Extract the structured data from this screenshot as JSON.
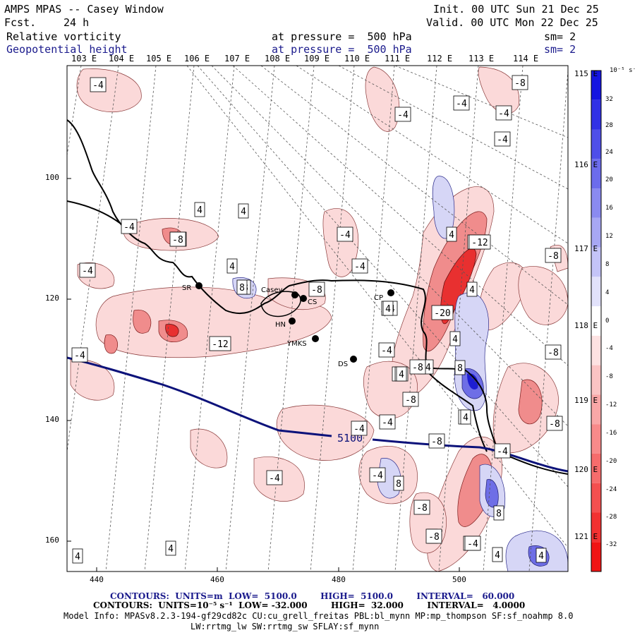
{
  "header": {
    "title": "AMPS MPAS -- Casey Window",
    "fcst_label": "Fcst.",
    "fcst_value": "24 h",
    "init": "Init. 00 UTC Sun 21 Dec 25",
    "valid": "Valid. 00 UTC Mon 22 Dec 25",
    "field1": "Relative vorticity",
    "field1_level": "at pressure =  500 hPa",
    "field1_smooth": "sm= 2",
    "field2": "Geopotential height",
    "field2_level": "at pressure =  500 hPa",
    "field2_smooth": "sm= 2"
  },
  "axes": {
    "top_lon": [
      "103 E",
      "104 E",
      "105 E",
      "106 E",
      "107 E",
      "108 E",
      "109 E",
      "110 E",
      "111 E",
      "112 E",
      "113 E",
      "114 E"
    ],
    "right_lon": [
      "115 E",
      "116 E",
      "117 E",
      "118 E",
      "119 E",
      "120 E",
      "121 E"
    ],
    "left_y": [
      "100",
      "120",
      "140",
      "160"
    ],
    "bottom_x": [
      "440",
      "460",
      "480",
      "500"
    ]
  },
  "colorbar": {
    "units": "10⁻⁵ s⁻¹",
    "ticks": [
      "32",
      "28",
      "24",
      "20",
      "16",
      "12",
      "8",
      "4",
      "0",
      "-4",
      "-8",
      "-12",
      "-16",
      "-20",
      "-24",
      "-28",
      "-32"
    ],
    "pos_color": "#1414dc",
    "neg_color": "#f01414"
  },
  "stations": [
    "SR",
    "Casey",
    "CS",
    "HN",
    "YMKS",
    "CP",
    "DS"
  ],
  "contour_labels": {
    "vort": [
      "-4",
      "-8",
      "-4",
      "-4",
      "-8",
      "-4",
      "-4",
      "4",
      "4",
      "-4",
      "-8",
      "4",
      "-4",
      "8",
      "-8",
      "-4",
      "-12",
      "4",
      "-4",
      "-4",
      "8",
      "-12",
      "-4",
      "4",
      "4",
      "4",
      "-8",
      "-20",
      "4",
      "-8",
      "-4",
      "8",
      "-4",
      "4",
      "-8",
      "-8",
      "-4",
      "-4",
      "8",
      "-8",
      "4",
      "-4",
      "-4",
      "8",
      "-4",
      "8",
      "4",
      "-8",
      "-4",
      "4",
      "-4",
      "4",
      "-4",
      "4",
      "-8",
      "-12",
      "-8",
      "4",
      "4"
    ],
    "height": "5100"
  },
  "footer": {
    "height_contours": "CONTOURS:  UNITS=m  LOW=  5100.0        HIGH=  5100.0        INTERVAL=   60.000",
    "vort_contours": "CONTOURS:  UNITS=10⁻⁵ s⁻¹  LOW= -32.000        HIGH=  32.000        INTERVAL=   4.0000",
    "model_info": "Model Info: MPASv8.2.3-194-gf29cd82c CU:cu_grell_freitas PBL:bl_mynn MP:mp_thompson SF:sf_noahmp 8.0",
    "model_info2": "LW:rrtmg_lw SW:rrtmg_sw SFLAY:sf_mynn"
  }
}
